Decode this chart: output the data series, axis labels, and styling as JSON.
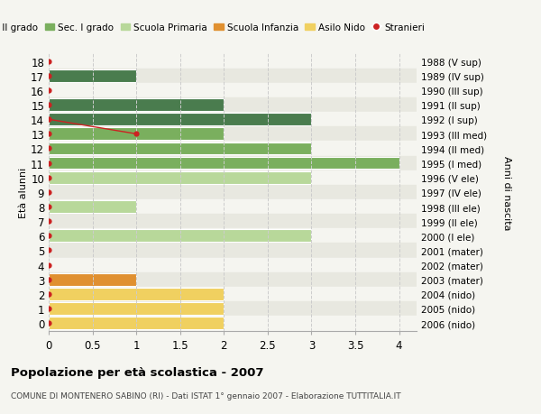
{
  "ages": [
    18,
    17,
    16,
    15,
    14,
    13,
    12,
    11,
    10,
    9,
    8,
    7,
    6,
    5,
    4,
    3,
    2,
    1,
    0
  ],
  "years": [
    "1988 (V sup)",
    "1989 (IV sup)",
    "1990 (III sup)",
    "1991 (II sup)",
    "1992 (I sup)",
    "1993 (III med)",
    "1994 (II med)",
    "1995 (I med)",
    "1996 (V ele)",
    "1997 (IV ele)",
    "1998 (III ele)",
    "1999 (II ele)",
    "2000 (I ele)",
    "2001 (mater)",
    "2002 (mater)",
    "2003 (mater)",
    "2004 (nido)",
    "2005 (nido)",
    "2006 (nido)"
  ],
  "bar_values": [
    0,
    1,
    0,
    2,
    3,
    2,
    3,
    4,
    3,
    0,
    1,
    0,
    3,
    0,
    0,
    1,
    2,
    2,
    2
  ],
  "bar_colors": [
    "#4a7c4e",
    "#4a7c4e",
    "#4a7c4e",
    "#4a7c4e",
    "#4a7c4e",
    "#7aaf5e",
    "#7aaf5e",
    "#7aaf5e",
    "#b8d89a",
    "#b8d89a",
    "#b8d89a",
    "#b8d89a",
    "#b8d89a",
    "#e09030",
    "#e09030",
    "#e09030",
    "#f0d060",
    "#f0d060",
    "#f0d060"
  ],
  "color_sec2": "#4a7c4e",
  "color_sec1": "#7aaf5e",
  "color_prim": "#b8d89a",
  "color_infanzia": "#e09030",
  "color_nido": "#f0d060",
  "color_stranieri": "#cc2222",
  "bg_color": "#f5f5f0",
  "row_bg_even": "#e8e8e0",
  "grid_color": "#cccccc",
  "title": "Popolazione per età scolastica - 2007",
  "subtitle": "COMUNE DI MONTENERO SABINO (RI) - Dati ISTAT 1° gennaio 2007 - Elaborazione TUTTITALIA.IT",
  "ylabel": "Età alunni",
  "ylabel2": "Anni di nascita",
  "xlabel_ticks": [
    0,
    0.5,
    1.0,
    1.5,
    2.0,
    2.5,
    3.0,
    3.5,
    4.0
  ],
  "xlim": [
    0,
    4.2
  ],
  "bar_height": 0.85,
  "stranieri_line": [
    [
      0,
      14
    ],
    [
      1,
      13
    ]
  ],
  "stranieri_dots": [
    18,
    17,
    16,
    15,
    14,
    12,
    11,
    10,
    9,
    8,
    7,
    6,
    5,
    4,
    3,
    2,
    1,
    0
  ]
}
